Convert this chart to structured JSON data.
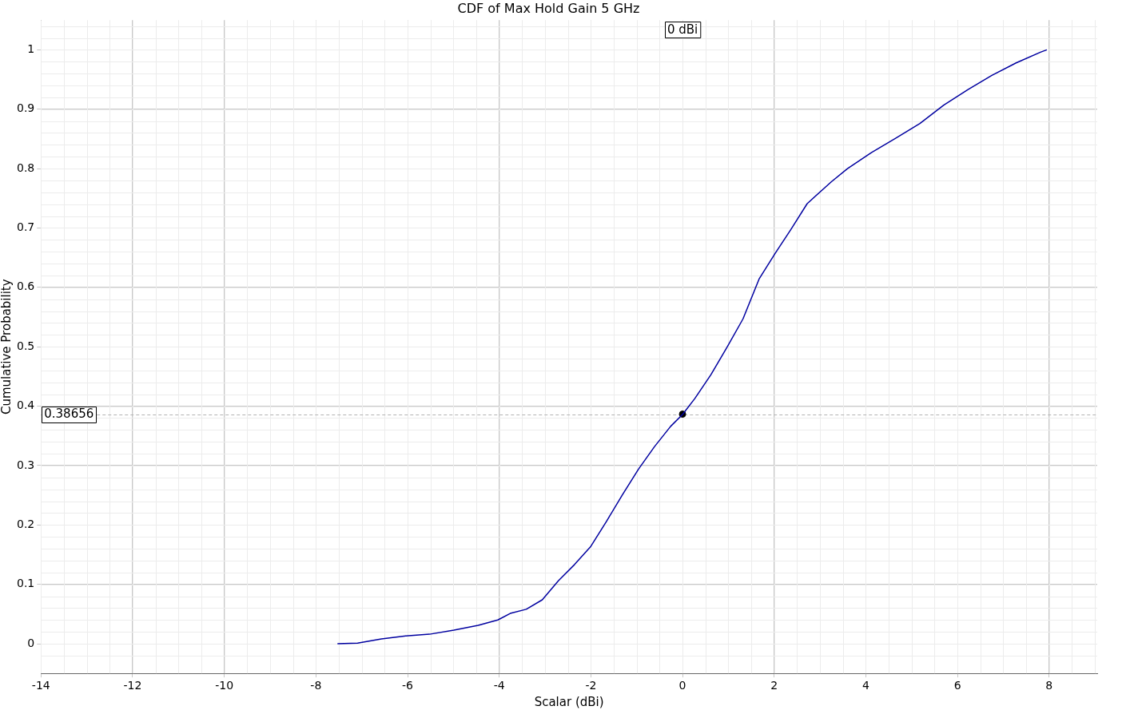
{
  "chart_data": {
    "type": "line",
    "title": "CDF of Max Hold Gain 5 GHz",
    "xlabel": "Scalar (dBi)",
    "ylabel": "Cumulative Probability",
    "xlim": [
      -14,
      9.05
    ],
    "xticks": [
      -14,
      -12,
      -10,
      -8,
      -6,
      -4,
      -2,
      0,
      2,
      4,
      6,
      8
    ],
    "ylim": [
      -0.05,
      1.05
    ],
    "yticks": [
      0,
      0.1,
      0.2,
      0.3,
      0.4,
      0.5,
      0.6,
      0.7,
      0.8,
      0.9,
      1
    ],
    "grid": true,
    "legend": false,
    "marker": "none",
    "line_style": "solid",
    "series": [
      {
        "color": "#0000a0",
        "x": [
          -7.53,
          -7.09,
          -6.57,
          -6.04,
          -5.52,
          -4.99,
          -4.46,
          -4.03,
          -3.76,
          -3.41,
          -3.06,
          -2.71,
          -2.36,
          -2.01,
          -1.66,
          -1.31,
          -0.96,
          -0.61,
          -0.26,
          0,
          0.27,
          0.62,
          0.97,
          1.32,
          1.67,
          2.02,
          2.37,
          2.72,
          3.25,
          3.6,
          4.12,
          4.65,
          5.18,
          5.7,
          6.23,
          6.75,
          7.28,
          7.81,
          7.95
        ],
        "values": [
          0,
          0.001,
          0.008,
          0.013,
          0.016,
          0.023,
          0.031,
          0.04,
          0.051,
          0.058,
          0.074,
          0.106,
          0.133,
          0.163,
          0.206,
          0.251,
          0.294,
          0.332,
          0.366,
          0.386,
          0.413,
          0.453,
          0.499,
          0.547,
          0.614,
          0.657,
          0.698,
          0.741,
          0.778,
          0.8,
          0.827,
          0.851,
          0.876,
          0.907,
          0.933,
          0.957,
          0.978,
          0.996,
          1
        ]
      },
      {
        "type": "scatter",
        "marker": "circle",
        "color": "#000000",
        "x": [
          0
        ],
        "values": [
          0.38656
        ]
      }
    ],
    "ref_lines": [
      {
        "axis": "y",
        "value": 0.38656,
        "label": "0.38656",
        "color": "#b4b4b4",
        "line_style": "dashed"
      }
    ],
    "annotations": [
      "0 dBi"
    ]
  }
}
